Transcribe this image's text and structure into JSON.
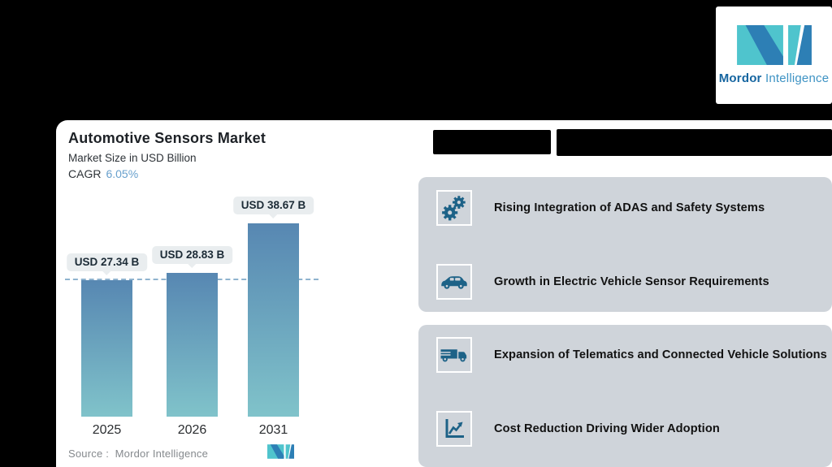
{
  "brand": {
    "name_bold": "Mordor",
    "name_light": "Intelligence"
  },
  "chart_card": {
    "title": "Automotive Sensors Market",
    "subtitle": "Market Size in USD Billion",
    "cagr_label": "CAGR",
    "cagr_value": "6.05%",
    "source_label": "Source :",
    "source_value": "Mordor Intelligence"
  },
  "chart_data": {
    "type": "bar",
    "categories": [
      "2025",
      "2026",
      "2031"
    ],
    "values": [
      27.34,
      28.83,
      38.67
    ],
    "value_labels": [
      "USD 27.34 B",
      "USD 28.83 B",
      "USD 38.67 B"
    ],
    "title": "Automotive Sensors Market",
    "ylabel": "Market Size in USD Billion",
    "cagr": "6.05%",
    "ylim": [
      0,
      42
    ],
    "grid": false,
    "reference_line": {
      "style": "dashed",
      "at_value": 27.34
    },
    "bar_gradient": [
      "#5787b2",
      "#80c3ca"
    ]
  },
  "right_panel": {
    "title_redacted": true,
    "drivers": [
      {
        "icon": "gears-icon",
        "label": "Rising Integration of ADAS and Safety Systems"
      },
      {
        "icon": "car-icon",
        "label": "Growth in Electric Vehicle Sensor Requirements"
      },
      {
        "icon": "truck-icon",
        "label": "Expansion of Telematics and Connected Vehicle Solutions"
      },
      {
        "icon": "chart-icon",
        "label": "Cost Reduction Driving Wider Adoption"
      }
    ]
  },
  "colors": {
    "background": "#000000",
    "panel": "#ffffff",
    "driver_card": "#cfd4da",
    "icon_blue": "#1d6287",
    "bar_top": "#5787b2",
    "bar_bottom": "#80c3ca",
    "dashed_line": "#8fb3cf",
    "cagr_value": "#68a0cd",
    "logo_teal": "#4fc4cd",
    "logo_blue": "#2d7fb5"
  }
}
